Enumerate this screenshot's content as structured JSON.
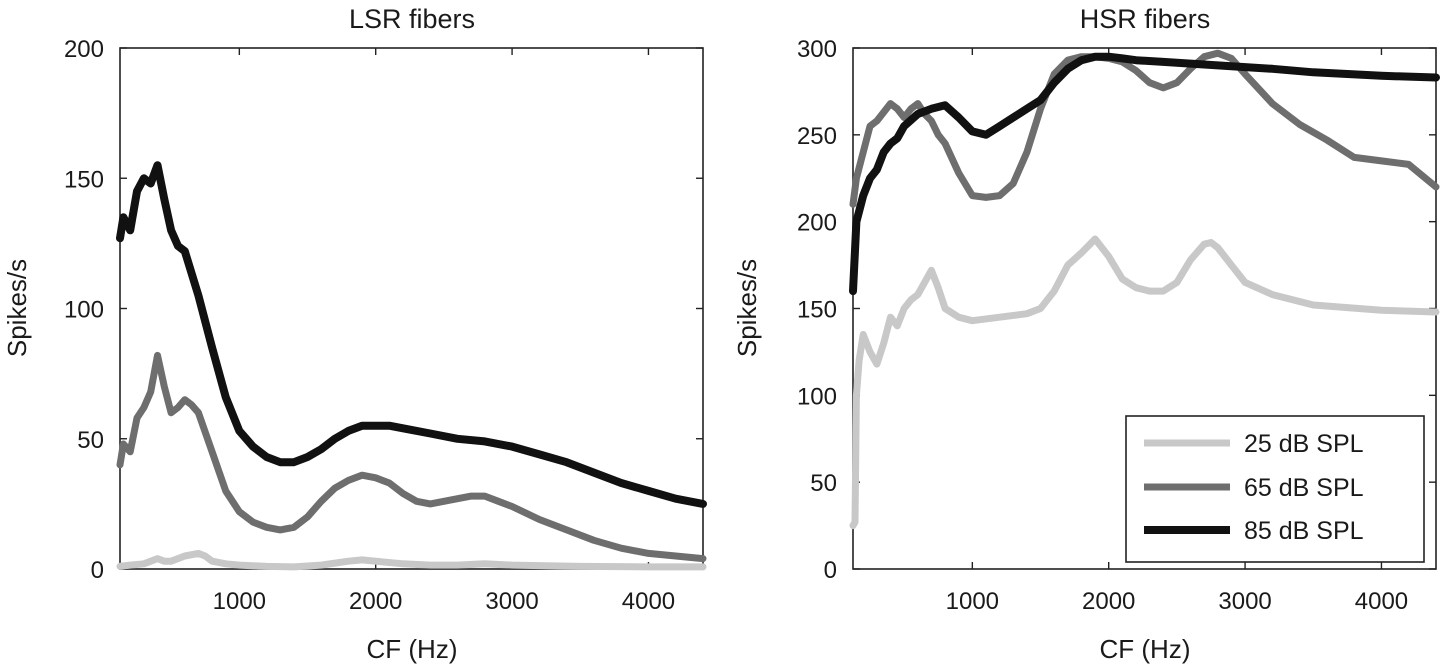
{
  "chart_data": [
    {
      "type": "line",
      "title": "LSR fibers",
      "xlabel": "CF (Hz)",
      "ylabel": "Spikes/s",
      "xlim": [
        125,
        4400
      ],
      "ylim": [
        0,
        200
      ],
      "xticks": [
        1000,
        2000,
        3000,
        4000
      ],
      "yticks": [
        0,
        50,
        100,
        150,
        200
      ],
      "grid": false,
      "series": [
        {
          "name": "25 dB SPL",
          "color": "#c8c8c8",
          "x": [
            125,
            200,
            300,
            400,
            450,
            500,
            600,
            700,
            750,
            800,
            900,
            1000,
            1200,
            1400,
            1600,
            1800,
            1900,
            2000,
            2200,
            2400,
            2600,
            2800,
            3000,
            3500,
            4000,
            4400
          ],
          "y": [
            1,
            1.5,
            2,
            4,
            3,
            3,
            5,
            6,
            5,
            3,
            2,
            1.5,
            1,
            0.8,
            1.5,
            3,
            3.5,
            3,
            2,
            1.5,
            1.5,
            2,
            1.5,
            1,
            0.8,
            0.8
          ]
        },
        {
          "name": "65 dB SPL",
          "color": "#6e6e6e",
          "x": [
            125,
            150,
            200,
            250,
            300,
            350,
            400,
            450,
            500,
            550,
            600,
            650,
            700,
            800,
            900,
            1000,
            1100,
            1200,
            1300,
            1400,
            1500,
            1600,
            1700,
            1800,
            1900,
            2000,
            2100,
            2200,
            2300,
            2400,
            2500,
            2600,
            2700,
            2800,
            2900,
            3000,
            3200,
            3400,
            3600,
            3800,
            4000,
            4200,
            4400
          ],
          "y": [
            40,
            48,
            45,
            58,
            62,
            68,
            82,
            70,
            60,
            62,
            65,
            63,
            60,
            45,
            30,
            22,
            18,
            16,
            15,
            16,
            20,
            26,
            31,
            34,
            36,
            35,
            33,
            29,
            26,
            25,
            26,
            27,
            28,
            28,
            26,
            24,
            19,
            15,
            11,
            8,
            6,
            5,
            4
          ]
        },
        {
          "name": "85 dB SPL",
          "color": "#111111",
          "x": [
            125,
            150,
            200,
            250,
            300,
            350,
            400,
            450,
            500,
            550,
            600,
            700,
            800,
            900,
            1000,
            1100,
            1200,
            1300,
            1400,
            1500,
            1600,
            1700,
            1800,
            1900,
            2000,
            2100,
            2200,
            2400,
            2600,
            2800,
            3000,
            3200,
            3400,
            3600,
            3800,
            4000,
            4200,
            4400
          ],
          "y": [
            127,
            135,
            130,
            145,
            150,
            148,
            155,
            142,
            130,
            124,
            122,
            105,
            85,
            66,
            53,
            47,
            43,
            41,
            41,
            43,
            46,
            50,
            53,
            55,
            55,
            55,
            54,
            52,
            50,
            49,
            47,
            44,
            41,
            37,
            33,
            30,
            27,
            25
          ]
        }
      ]
    },
    {
      "type": "line",
      "title": "HSR fibers",
      "xlabel": "CF (Hz)",
      "ylabel": "Spikes/s",
      "xlim": [
        125,
        4400
      ],
      "ylim": [
        0,
        300
      ],
      "xticks": [
        1000,
        2000,
        3000,
        4000
      ],
      "yticks": [
        0,
        50,
        100,
        150,
        200,
        250,
        300
      ],
      "grid": false,
      "legend": {
        "position": "bottom-right",
        "entries": [
          "25 dB SPL",
          "65 dB SPL",
          "85 dB SPL"
        ]
      },
      "series": [
        {
          "name": "25 dB SPL",
          "color": "#c8c8c8",
          "x": [
            125,
            140,
            150,
            170,
            200,
            250,
            300,
            350,
            400,
            450,
            500,
            550,
            600,
            650,
            700,
            750,
            800,
            900,
            1000,
            1200,
            1400,
            1500,
            1600,
            1700,
            1800,
            1900,
            2000,
            2100,
            2200,
            2300,
            2400,
            2500,
            2600,
            2700,
            2750,
            2800,
            2900,
            3000,
            3200,
            3500,
            4000,
            4400
          ],
          "y": [
            25,
            27,
            100,
            120,
            135,
            125,
            118,
            130,
            145,
            140,
            150,
            155,
            158,
            165,
            172,
            162,
            150,
            145,
            143,
            145,
            147,
            150,
            160,
            175,
            182,
            190,
            180,
            167,
            162,
            160,
            160,
            165,
            178,
            187,
            188,
            185,
            175,
            165,
            158,
            152,
            149,
            148
          ]
        },
        {
          "name": "65 dB SPL",
          "color": "#6e6e6e",
          "x": [
            125,
            150,
            200,
            250,
            300,
            400,
            450,
            500,
            550,
            600,
            650,
            700,
            750,
            800,
            900,
            1000,
            1100,
            1200,
            1300,
            1400,
            1500,
            1600,
            1700,
            1800,
            1900,
            2000,
            2100,
            2200,
            2300,
            2400,
            2500,
            2600,
            2700,
            2800,
            2900,
            3000,
            3200,
            3400,
            3600,
            3800,
            4000,
            4200,
            4400
          ],
          "y": [
            210,
            225,
            240,
            255,
            258,
            268,
            265,
            260,
            265,
            268,
            262,
            258,
            250,
            245,
            228,
            215,
            214,
            215,
            222,
            240,
            265,
            285,
            293,
            295,
            295,
            294,
            292,
            287,
            280,
            277,
            280,
            288,
            295,
            297,
            294,
            285,
            268,
            256,
            247,
            237,
            235,
            233,
            220
          ]
        },
        {
          "name": "85 dB SPL",
          "color": "#111111",
          "x": [
            125,
            150,
            200,
            250,
            300,
            350,
            400,
            450,
            500,
            600,
            700,
            800,
            900,
            1000,
            1100,
            1200,
            1300,
            1400,
            1500,
            1600,
            1700,
            1800,
            1900,
            2000,
            2100,
            2200,
            2400,
            2600,
            2800,
            3000,
            3200,
            3500,
            4000,
            4400
          ],
          "y": [
            160,
            200,
            215,
            225,
            230,
            240,
            245,
            248,
            255,
            262,
            265,
            267,
            260,
            252,
            250,
            255,
            260,
            265,
            270,
            280,
            288,
            293,
            295,
            295,
            294,
            293,
            292,
            291,
            290,
            289,
            288,
            286,
            284,
            283
          ]
        }
      ]
    }
  ]
}
